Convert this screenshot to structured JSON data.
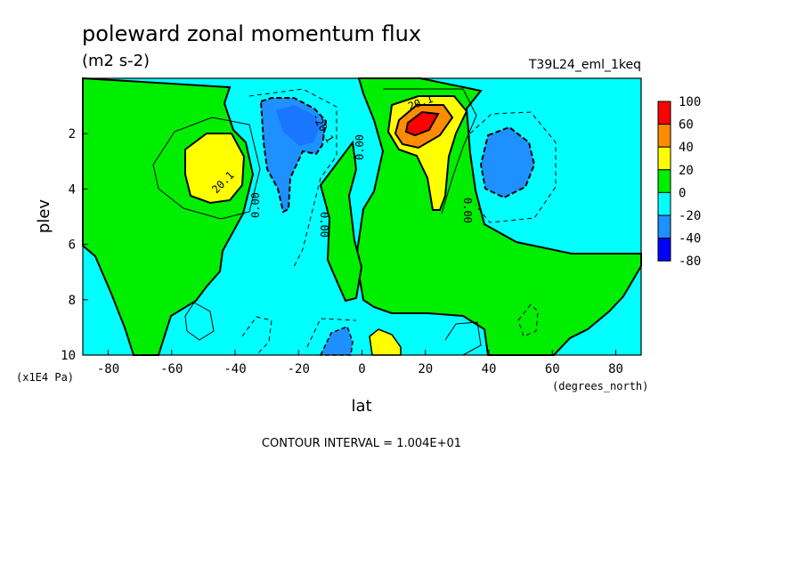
{
  "chart_data": {
    "type": "heatmap",
    "title": "poleward zonal momentum flux",
    "units": "(m2 s-2)",
    "run_label": "T39L24_eml_1keq",
    "xlabel": "lat",
    "ylabel": "plev",
    "x_unit": "(degrees_north)",
    "y_unit": "(x1E4 Pa)",
    "xlim": [
      -88,
      88
    ],
    "ylim": [
      10,
      0
    ],
    "x_ticks": [
      -80,
      -60,
      -40,
      -20,
      0,
      20,
      40,
      60,
      80
    ],
    "y_ticks": [
      2,
      4,
      6,
      8,
      10
    ],
    "colorbar": {
      "levels": [
        "100",
        "60",
        "40",
        "20",
        "0",
        "-20",
        "-40",
        "-80"
      ],
      "colors": [
        "#ff0000",
        "#ff8c00",
        "#ffff00",
        "#00ee00",
        "#00ffff",
        "#1e90ff",
        "#0000ff"
      ]
    },
    "contour_labels": [
      "20.1",
      "20.1",
      "-20.1",
      "0.00",
      "0.00",
      "0.00",
      "0.00",
      "0.00",
      "20.1"
    ],
    "contour_interval_note": "CONTOUR INTERVAL = 1.004E+01",
    "features": [
      {
        "name": "positive-max-nh",
        "lat": 19,
        "plev": 1.8,
        "value": 75
      },
      {
        "name": "positive-max-sh",
        "lat": -47,
        "plev": 3.0,
        "value": 28
      },
      {
        "name": "negative-min-sh",
        "lat": -20,
        "plev": 1.9,
        "value": -45
      },
      {
        "name": "negative-min-nh",
        "lat": 45,
        "plev": 3.0,
        "value": -28
      }
    ]
  }
}
